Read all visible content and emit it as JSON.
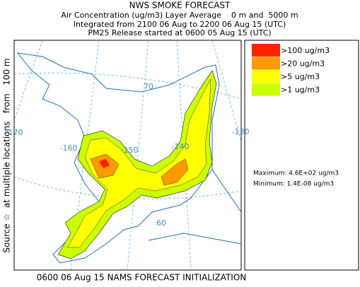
{
  "header": {
    "title": "NWS SMOKE FORECAST",
    "subtitle": "Air Concentration (ug/m3) Layer Average    0 m and  5000 m",
    "integration": "Integrated from 2100 06 Aug to 2200 06 Aug 15 (UTC)",
    "release": "PM25 Release started at 0600 05 Aug 15 (UTC)"
  },
  "legend": {
    "items": [
      {
        "label": ">100 ug/m3",
        "color": "#ff2200"
      },
      {
        "label": ">20 ug/m3",
        "color": "#ff9900"
      },
      {
        "label": ">5 ug/m3",
        "color": "#ffff00"
      },
      {
        "label": ">1 ug/m3",
        "color": "#ccff00"
      }
    ],
    "maximum": "Maximum: 4.6E+02 ug/m3",
    "minimum": "Minimum: 1.4E-08 ug/m3"
  },
  "map": {
    "grid_labels": [
      "70",
      "-170",
      "-160",
      "-150",
      "-140",
      "-130",
      "60"
    ]
  },
  "source_label": "Source ☆  at multiple locations   from   100 m",
  "footer": "0600 06 Aug 15 NAMS FORECAST INITIALIZATION"
}
